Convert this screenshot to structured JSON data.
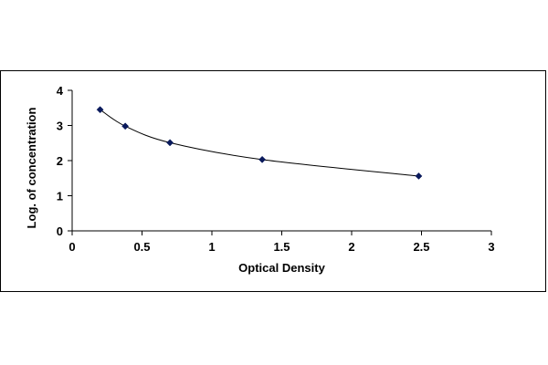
{
  "chart_data": {
    "type": "scatter",
    "title": "",
    "xlabel": "Optical Density",
    "ylabel": "Log. of concentration",
    "xlim": [
      0,
      3
    ],
    "ylim": [
      0,
      4
    ],
    "x_ticks": [
      0,
      0.5,
      1,
      1.5,
      2,
      2.5,
      3
    ],
    "y_ticks": [
      0,
      1,
      2,
      3,
      4
    ],
    "x_tick_labels": [
      "0",
      "0.5",
      "1",
      "1.5",
      "2",
      "2.5",
      "3"
    ],
    "y_tick_labels": [
      "0",
      "1",
      "2",
      "3",
      "4"
    ],
    "grid": false,
    "legend": "none",
    "marker": "diamond",
    "trendline": "smooth curve",
    "series": [
      {
        "x": [
          0.2,
          0.38,
          0.7,
          1.36,
          2.48
        ],
        "y": [
          3.45,
          2.98,
          2.51,
          2.03,
          1.56
        ]
      }
    ],
    "colors": {
      "marker": "#0a1a5c",
      "line": "#000000",
      "axis": "#000000"
    }
  }
}
